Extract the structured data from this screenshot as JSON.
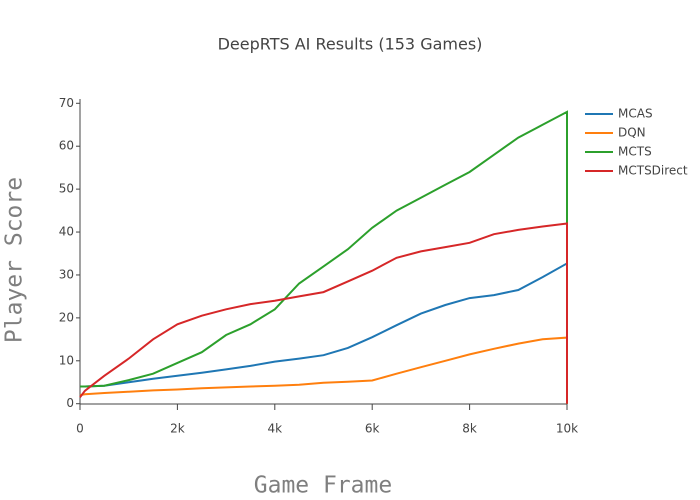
{
  "chart_data": {
    "type": "line",
    "title": "DeepRTS AI Results (153 Games)",
    "x_label": "Game Frame",
    "y_label": "Player Score",
    "x": [
      0,
      100,
      500,
      1000,
      1500,
      2000,
      2500,
      3000,
      3500,
      4000,
      4500,
      5000,
      5500,
      6000,
      6500,
      7000,
      7500,
      8000,
      8500,
      9000,
      9500,
      10000,
      10000
    ],
    "series": [
      {
        "name": "MCAS",
        "color": "#1f77b4",
        "values": [
          4,
          4,
          4.2,
          5,
          5.8,
          6.5,
          7.2,
          8,
          8.8,
          9.8,
          10.5,
          11.3,
          13,
          15.5,
          18.3,
          21,
          23,
          24.6,
          25.3,
          26.5,
          29.5,
          32.7,
          0
        ]
      },
      {
        "name": "DQN",
        "color": "#ff7f0e",
        "values": [
          2,
          2.2,
          2.5,
          2.8,
          3.1,
          3.3,
          3.6,
          3.8,
          4,
          4.2,
          4.4,
          4.9,
          5.1,
          5.4,
          7,
          8.5,
          10,
          11.5,
          12.8,
          14,
          15,
          15.4,
          0
        ]
      },
      {
        "name": "MCTS",
        "color": "#2ca02c",
        "values": [
          4,
          4,
          4.2,
          5.5,
          7,
          9.5,
          12,
          16,
          18.5,
          22,
          28,
          32,
          36,
          41,
          45,
          48,
          51,
          54,
          58,
          62,
          65,
          68,
          0
        ]
      },
      {
        "name": "MCTSDirect",
        "color": "#d62728",
        "values": [
          1.5,
          3,
          6.5,
          10.5,
          15,
          18.5,
          20.5,
          22,
          23.2,
          24,
          25,
          26,
          28.5,
          31,
          34,
          35.5,
          36.5,
          37.5,
          39.5,
          40.5,
          41.3,
          42,
          0
        ]
      }
    ],
    "xlim": [
      0,
      10000
    ],
    "ylim": [
      -1,
      71
    ],
    "xticks": [
      0,
      {
        "value": 2000,
        "label": "2k"
      },
      {
        "value": 4000,
        "label": "4k"
      },
      {
        "value": 6000,
        "label": "6k"
      },
      {
        "value": 8000,
        "label": "8k"
      },
      {
        "value": 10000,
        "label": "10k"
      }
    ],
    "yticks": [
      0,
      10,
      20,
      30,
      40,
      50,
      60,
      70
    ],
    "grid": false,
    "legend": "top-right"
  }
}
